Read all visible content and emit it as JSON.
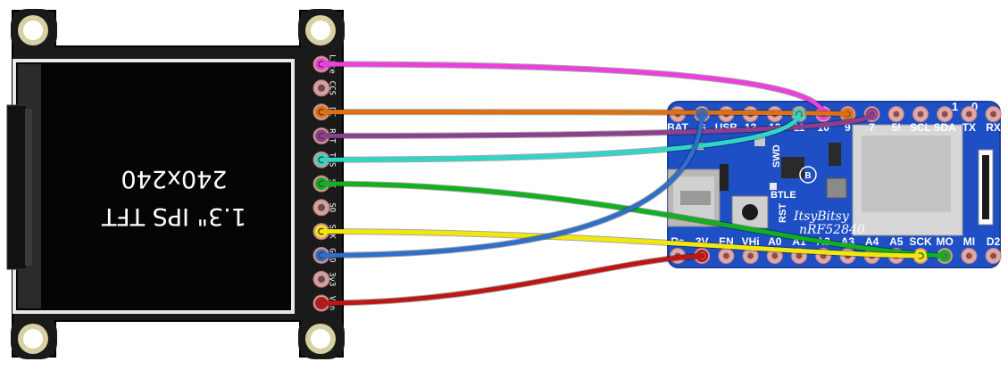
{
  "display": {
    "title": "1.3\" IPS TFT",
    "resolution": "240x240",
    "pins": [
      "Lite",
      "CCS",
      "DC",
      "RST",
      "TCS",
      "SI",
      "SO",
      "SCK",
      "GND",
      "3v3",
      "Vin"
    ]
  },
  "board": {
    "top_labels": [
      "BAT",
      "G",
      "USB",
      "13",
      "12",
      "11",
      "10",
      "9",
      "7",
      "5!",
      "SCL",
      "SDA",
      "TX",
      "RX"
    ],
    "top_markers": [
      "1",
      "0"
    ],
    "bottom_labels": [
      "Rs",
      "3V",
      "EN",
      "VHi",
      "A0",
      "A1",
      "A2",
      "A3",
      "A4",
      "A5",
      "SCK",
      "MO",
      "MI",
      "D2"
    ],
    "name_line1": "ItsyBitsy",
    "name_line2": "nRF52840",
    "chip_labels": [
      "SWD",
      "BTLE",
      "RST",
      "B"
    ]
  },
  "wires": [
    {
      "from": "Lite",
      "to": "10",
      "color": "#ee3ee0"
    },
    {
      "from": "DC",
      "to": "9",
      "color": "#e0700f"
    },
    {
      "from": "RST",
      "to": "7",
      "color": "#8b3f8e"
    },
    {
      "from": "TCS",
      "to": "11",
      "color": "#2fd6c8"
    },
    {
      "from": "SI",
      "to": "MO",
      "color": "#10b020"
    },
    {
      "from": "SCK",
      "to": "SCK",
      "color": "#f2e60f"
    },
    {
      "from": "GND",
      "to": "G",
      "color": "#2f6fc8"
    },
    {
      "from": "Vin",
      "to": "3V",
      "color": "#c01515"
    }
  ]
}
